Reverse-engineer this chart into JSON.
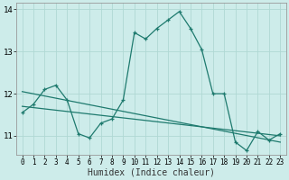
{
  "xlabel": "Humidex (Indice chaleur)",
  "background_color": "#cdecea",
  "grid_color": "#b0d8d4",
  "line_color": "#1e7a6e",
  "xlim": [
    -0.5,
    23.5
  ],
  "ylim": [
    10.55,
    14.15
  ],
  "yticks": [
    11,
    12,
    13,
    14
  ],
  "xticks": [
    0,
    1,
    2,
    3,
    4,
    5,
    6,
    7,
    8,
    9,
    10,
    11,
    12,
    13,
    14,
    15,
    16,
    17,
    18,
    19,
    20,
    21,
    22,
    23
  ],
  "main_x": [
    0,
    1,
    2,
    3,
    4,
    5,
    6,
    7,
    8,
    9,
    10,
    11,
    12,
    13,
    14,
    15,
    16,
    17,
    18,
    19,
    20,
    21,
    22,
    23
  ],
  "main_y": [
    11.55,
    11.75,
    12.1,
    12.2,
    11.85,
    11.05,
    10.95,
    11.3,
    11.4,
    11.85,
    13.45,
    13.3,
    13.55,
    13.75,
    13.95,
    13.55,
    13.05,
    12.0,
    12.0,
    10.85,
    10.65,
    11.1,
    10.9,
    11.05
  ],
  "trend1_x": [
    0,
    23
  ],
  "trend1_y": [
    12.05,
    10.85
  ],
  "trend2_x": [
    0,
    23
  ],
  "trend2_y": [
    11.7,
    11.0
  ]
}
